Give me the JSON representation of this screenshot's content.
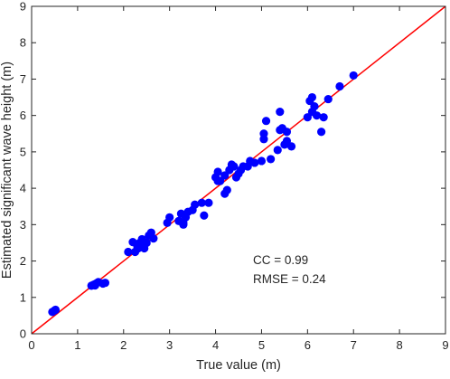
{
  "chart_data": {
    "type": "scatter",
    "xlabel": "True value (m)",
    "ylabel": "Estimated significant wave height (m)",
    "xlim": [
      0,
      9
    ],
    "ylim": [
      0,
      9
    ],
    "xticks": [
      0,
      1,
      2,
      3,
      4,
      5,
      6,
      7,
      8,
      9
    ],
    "yticks": [
      0,
      1,
      2,
      3,
      4,
      5,
      6,
      7,
      8,
      9
    ],
    "grid": false,
    "annotations": [
      "CC = 0.99",
      "RMSE = 0.24"
    ],
    "marker_color": "#0000ff",
    "reference_line": {
      "x": [
        0,
        9
      ],
      "y": [
        0,
        9
      ],
      "color": "#ff0000"
    },
    "series": [
      {
        "points": [
          [
            0.45,
            0.6
          ],
          [
            0.5,
            0.64
          ],
          [
            0.52,
            0.66
          ],
          [
            1.3,
            1.32
          ],
          [
            1.35,
            1.35
          ],
          [
            1.4,
            1.38
          ],
          [
            1.45,
            1.42
          ],
          [
            1.55,
            1.38
          ],
          [
            1.6,
            1.4
          ],
          [
            1.38,
            1.33
          ],
          [
            2.1,
            2.25
          ],
          [
            2.2,
            2.52
          ],
          [
            2.25,
            2.25
          ],
          [
            2.3,
            2.4
          ],
          [
            2.35,
            2.5
          ],
          [
            2.4,
            2.6
          ],
          [
            2.45,
            2.35
          ],
          [
            2.5,
            2.5
          ],
          [
            2.55,
            2.7
          ],
          [
            2.6,
            2.78
          ],
          [
            2.65,
            2.62
          ],
          [
            2.32,
            2.35
          ],
          [
            2.95,
            3.05
          ],
          [
            3.0,
            3.2
          ],
          [
            3.2,
            3.1
          ],
          [
            3.25,
            3.3
          ],
          [
            3.3,
            3.05
          ],
          [
            3.3,
            3.0
          ],
          [
            3.35,
            3.2
          ],
          [
            3.4,
            3.35
          ],
          [
            3.5,
            3.4
          ],
          [
            3.55,
            3.55
          ],
          [
            3.7,
            3.6
          ],
          [
            3.75,
            3.25
          ],
          [
            3.85,
            3.6
          ],
          [
            4.0,
            4.3
          ],
          [
            4.05,
            4.45
          ],
          [
            4.05,
            4.2
          ],
          [
            4.1,
            4.2
          ],
          [
            4.2,
            3.85
          ],
          [
            4.2,
            4.35
          ],
          [
            4.25,
            3.95
          ],
          [
            4.3,
            4.5
          ],
          [
            4.35,
            4.65
          ],
          [
            4.4,
            4.6
          ],
          [
            4.45,
            4.3
          ],
          [
            4.5,
            4.4
          ],
          [
            4.55,
            4.5
          ],
          [
            4.6,
            4.6
          ],
          [
            4.7,
            4.6
          ],
          [
            4.75,
            4.75
          ],
          [
            4.85,
            4.7
          ],
          [
            5.0,
            4.75
          ],
          [
            5.05,
            5.35
          ],
          [
            5.05,
            5.5
          ],
          [
            5.1,
            5.85
          ],
          [
            5.2,
            4.8
          ],
          [
            5.35,
            5.05
          ],
          [
            5.4,
            5.6
          ],
          [
            5.4,
            6.1
          ],
          [
            5.45,
            5.65
          ],
          [
            5.5,
            5.2
          ],
          [
            5.55,
            5.3
          ],
          [
            5.55,
            5.55
          ],
          [
            5.65,
            5.15
          ],
          [
            6.0,
            5.95
          ],
          [
            6.05,
            6.4
          ],
          [
            6.1,
            6.5
          ],
          [
            6.1,
            6.1
          ],
          [
            6.15,
            6.25
          ],
          [
            6.2,
            6.0
          ],
          [
            6.3,
            5.55
          ],
          [
            6.35,
            5.95
          ],
          [
            6.45,
            6.45
          ],
          [
            6.7,
            6.8
          ],
          [
            7.0,
            7.1
          ]
        ]
      }
    ]
  }
}
